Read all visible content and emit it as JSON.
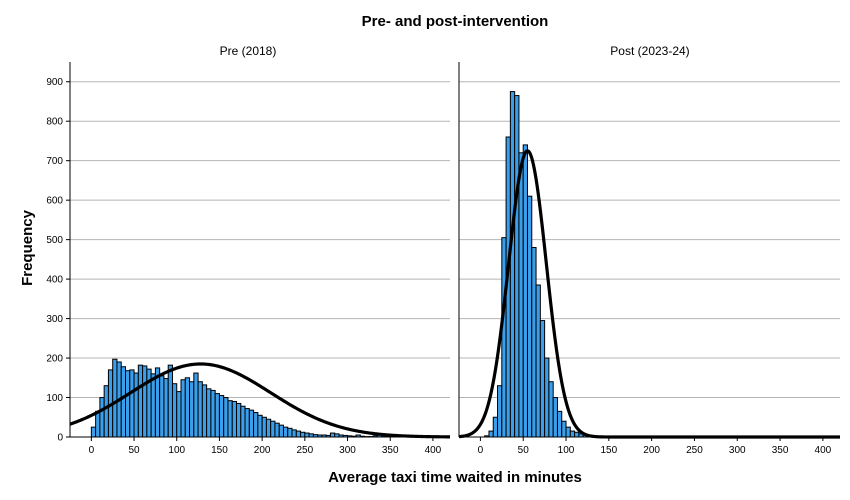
{
  "chart_data": {
    "type": "histogram",
    "title": "Pre- and post-intervention",
    "xlabel": "Average taxi time waited in minutes",
    "ylabel": "Frequency",
    "ylim": [
      0,
      950
    ],
    "y_ticks": [
      "0",
      "100",
      "200",
      "300",
      "400",
      "500",
      "600",
      "700",
      "800",
      "900"
    ],
    "x_ticks": [
      "0",
      "50",
      "100",
      "150",
      "200",
      "250",
      "300",
      "350",
      "400"
    ],
    "grid": "horizontal",
    "colors": {
      "bar": "#3b9eea",
      "curve": "#000000",
      "grid": "#b5b5b5"
    },
    "panels": [
      {
        "name": "Pre (2018)",
        "xlim": [
          -25,
          420
        ],
        "bin_width": 5,
        "bins_start": 0,
        "values": [
          25,
          65,
          100,
          130,
          170,
          197,
          190,
          178,
          168,
          170,
          162,
          182,
          180,
          172,
          160,
          175,
          155,
          148,
          182,
          135,
          115,
          145,
          150,
          140,
          162,
          140,
          132,
          122,
          118,
          110,
          105,
          100,
          92,
          90,
          85,
          78,
          72,
          68,
          62,
          55,
          50,
          45,
          40,
          35,
          30,
          25,
          22,
          18,
          15,
          12,
          10,
          8,
          6,
          5,
          5,
          4,
          10,
          8,
          5,
          4,
          3,
          2,
          5,
          2,
          1,
          1,
          3,
          8,
          3,
          2,
          1,
          2,
          1,
          2,
          1,
          1,
          1,
          1,
          2,
          1,
          1,
          1,
          1
        ],
        "normal_curve": {
          "mean": 128,
          "sd": 82,
          "peak": 185
        }
      },
      {
        "name": "Post (2023-24)",
        "xlim": [
          -25,
          420
        ],
        "bin_width": 5,
        "bins_start": 0,
        "values": [
          0,
          3,
          15,
          50,
          130,
          505,
          760,
          875,
          865,
          720,
          740,
          610,
          480,
          385,
          295,
          200,
          140,
          100,
          65,
          40,
          25,
          15,
          12,
          8,
          6,
          4,
          3,
          2,
          1,
          1,
          1,
          1,
          1
        ],
        "normal_curve": {
          "mean": 55,
          "sd": 22,
          "peak": 725
        }
      }
    ]
  }
}
